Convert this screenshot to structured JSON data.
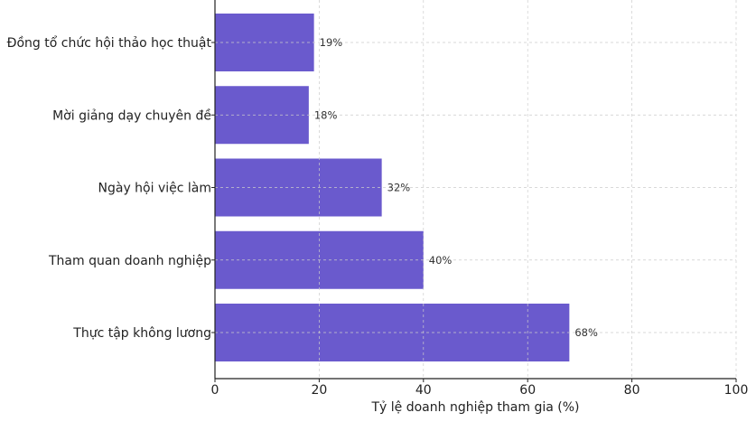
{
  "chart_data": {
    "type": "bar",
    "orientation": "horizontal",
    "title": "",
    "xlabel": "Tỷ lệ doanh nghiệp tham gia (%)",
    "ylabel": "",
    "categories": [
      "Thực tập không lương",
      "Tham quan doanh nghiệp",
      "Ngày hội việc làm",
      "Mời giảng dạy chuyên đề",
      "Đồng tổ chức hội thảo học thuật"
    ],
    "values": [
      68,
      40,
      32,
      18,
      19
    ],
    "data_labels": [
      "68%",
      "40%",
      "32%",
      "18%",
      "19%"
    ],
    "xlim": [
      0,
      100
    ],
    "xticks": [
      0,
      20,
      40,
      60,
      80,
      100
    ],
    "xtick_labels": [
      "0",
      "20",
      "40",
      "60",
      "80",
      "100"
    ],
    "grid": true,
    "bar_color": "#6A5ACD"
  }
}
